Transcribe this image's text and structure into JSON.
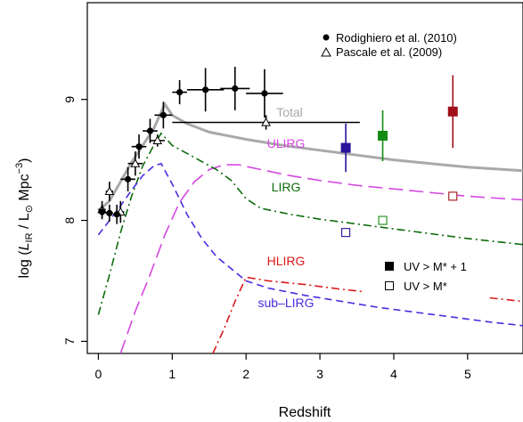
{
  "chart_data": {
    "type": "line",
    "xlabel": "Redshift",
    "ylabel_parts": [
      "log (",
      "L",
      "IR",
      " / L",
      "⊙",
      " Mpc",
      "−3",
      ")"
    ],
    "xlim": [
      -0.15,
      5.75
    ],
    "ylim": [
      6.9,
      9.8
    ],
    "x_ticks": [
      0,
      1,
      2,
      3,
      4,
      5
    ],
    "y_ticks": [
      7,
      8,
      9
    ],
    "colors": {
      "total": "#a9a9a9",
      "ulirg": "#d548e0",
      "lirg": "#0b6b0b",
      "hlirg": "#dd1818",
      "sublirg": "#4a2ce0",
      "uv_blue": "#2a129a",
      "uv_green": "#148a14",
      "uv_red": "#a0101a"
    },
    "curves": [
      {
        "key": "total",
        "label": "Total",
        "style": "solid",
        "points": [
          [
            0.0,
            8.08
          ],
          [
            0.15,
            8.16
          ],
          [
            0.3,
            8.32
          ],
          [
            0.45,
            8.48
          ],
          [
            0.6,
            8.62
          ],
          [
            0.75,
            8.76
          ],
          [
            0.9,
            8.96
          ],
          [
            1.0,
            8.87
          ],
          [
            1.2,
            8.8
          ],
          [
            1.5,
            8.73
          ],
          [
            2.0,
            8.67
          ],
          [
            2.5,
            8.62
          ],
          [
            3.0,
            8.58
          ],
          [
            3.5,
            8.54
          ],
          [
            4.0,
            8.5
          ],
          [
            4.5,
            8.47
          ],
          [
            5.0,
            8.44
          ],
          [
            5.75,
            8.41
          ]
        ]
      },
      {
        "key": "ulirg",
        "label": "ULIRG",
        "style": "longdash",
        "points": [
          [
            0.3,
            6.9
          ],
          [
            0.5,
            7.25
          ],
          [
            0.7,
            7.55
          ],
          [
            0.9,
            7.88
          ],
          [
            1.1,
            8.15
          ],
          [
            1.3,
            8.32
          ],
          [
            1.5,
            8.42
          ],
          [
            1.7,
            8.46
          ],
          [
            1.9,
            8.46
          ],
          [
            2.2,
            8.42
          ],
          [
            2.6,
            8.37
          ],
          [
            3.0,
            8.33
          ],
          [
            3.5,
            8.29
          ],
          [
            4.0,
            8.26
          ],
          [
            4.5,
            8.23
          ],
          [
            5.0,
            8.2
          ],
          [
            5.75,
            8.17
          ]
        ]
      },
      {
        "key": "lirg",
        "label": "LIRG",
        "style": "dashdot",
        "points": [
          [
            0.0,
            7.22
          ],
          [
            0.15,
            7.55
          ],
          [
            0.3,
            7.9
          ],
          [
            0.45,
            8.2
          ],
          [
            0.6,
            8.45
          ],
          [
            0.75,
            8.62
          ],
          [
            0.85,
            8.72
          ],
          [
            1.0,
            8.62
          ],
          [
            1.3,
            8.52
          ],
          [
            1.6,
            8.42
          ],
          [
            1.8,
            8.33
          ],
          [
            2.0,
            8.18
          ],
          [
            2.2,
            8.1
          ],
          [
            2.6,
            8.05
          ],
          [
            3.0,
            8.01
          ],
          [
            3.5,
            7.97
          ],
          [
            4.0,
            7.93
          ],
          [
            4.5,
            7.89
          ],
          [
            5.0,
            7.85
          ],
          [
            5.75,
            7.8
          ]
        ]
      },
      {
        "key": "hlirg",
        "label": "HLIRG",
        "style": "dashdot",
        "break_after_x": 3.6,
        "points": [
          [
            1.55,
            6.9
          ],
          [
            1.7,
            7.1
          ],
          [
            1.85,
            7.33
          ],
          [
            2.0,
            7.53
          ],
          [
            2.3,
            7.5
          ],
          [
            2.8,
            7.47
          ],
          [
            3.3,
            7.43
          ],
          [
            3.6,
            7.41
          ],
          [
            5.3,
            7.36
          ],
          [
            5.75,
            7.33
          ]
        ]
      },
      {
        "key": "sublirg",
        "label": "sub–LIRG",
        "style": "dash",
        "points": [
          [
            0.0,
            7.88
          ],
          [
            0.15,
            8.0
          ],
          [
            0.3,
            8.12
          ],
          [
            0.45,
            8.25
          ],
          [
            0.6,
            8.37
          ],
          [
            0.75,
            8.45
          ],
          [
            0.85,
            8.47
          ],
          [
            1.0,
            8.3
          ],
          [
            1.2,
            8.05
          ],
          [
            1.4,
            7.85
          ],
          [
            1.6,
            7.7
          ],
          [
            1.8,
            7.6
          ],
          [
            2.0,
            7.5
          ],
          [
            2.3,
            7.44
          ],
          [
            2.8,
            7.38
          ],
          [
            3.3,
            7.33
          ],
          [
            3.8,
            7.28
          ],
          [
            4.3,
            7.24
          ],
          [
            4.8,
            7.2
          ],
          [
            5.3,
            7.16
          ],
          [
            5.75,
            7.13
          ]
        ]
      }
    ],
    "rodighiero": {
      "label": "Rodighiero et al. (2010)",
      "points": [
        {
          "x": 0.05,
          "y": 8.07,
          "xerr": 0.05,
          "yerr": 0.06
        },
        {
          "x": 0.15,
          "y": 8.06,
          "xerr": 0.05,
          "yerr": 0.07
        },
        {
          "x": 0.25,
          "y": 8.05,
          "xerr": 0.05,
          "yerr": 0.08
        },
        {
          "x": 0.4,
          "y": 8.34,
          "xerr": 0.1,
          "yerr": 0.1
        },
        {
          "x": 0.55,
          "y": 8.61,
          "xerr": 0.1,
          "yerr": 0.1
        },
        {
          "x": 0.7,
          "y": 8.74,
          "xerr": 0.1,
          "yerr": 0.1
        },
        {
          "x": 0.88,
          "y": 8.87,
          "xerr": 0.12,
          "yerr": 0.11
        },
        {
          "x": 1.1,
          "y": 9.06,
          "xerr": 0.1,
          "yerr": 0.1
        },
        {
          "x": 1.45,
          "y": 9.08,
          "xerr": 0.25,
          "yerr": 0.18
        },
        {
          "x": 1.85,
          "y": 9.09,
          "xerr": 0.2,
          "yerr": 0.18
        },
        {
          "x": 2.25,
          "y": 9.05,
          "xerr": 0.25,
          "yerr": 0.2
        }
      ]
    },
    "pascale": {
      "label": "Pascale et al. (2009)",
      "points": [
        {
          "x": 0.05,
          "y": 8.09,
          "xerr": 0.05,
          "yerr": 0.07
        },
        {
          "x": 0.15,
          "y": 8.24,
          "xerr": 0.05,
          "yerr": 0.08
        },
        {
          "x": 0.3,
          "y": 8.07,
          "xerr": 0.05,
          "yerr": 0.09
        },
        {
          "x": 0.5,
          "y": 8.47,
          "xerr": 0.1,
          "yerr": 0.1
        },
        {
          "x": 0.8,
          "y": 8.66,
          "xerr": 0.1,
          "yerr": 0.05
        },
        {
          "x": 2.27,
          "y": 8.81,
          "xerr": 1.27,
          "yerr": 0.06
        }
      ]
    },
    "uv_bright": {
      "label": "UV > M* + 1",
      "points": [
        {
          "x": 3.35,
          "y": 8.6,
          "yerr": 0.2,
          "color_key": "uv_blue"
        },
        {
          "x": 3.85,
          "y": 8.7,
          "yerr": 0.21,
          "color_key": "uv_green"
        },
        {
          "x": 4.8,
          "y": 8.9,
          "yerr": 0.3,
          "color_key": "uv_red"
        }
      ]
    },
    "uv_faint": {
      "label": "UV > M*",
      "points": [
        {
          "x": 3.35,
          "y": 7.9,
          "color_key": "uv_blue"
        },
        {
          "x": 3.85,
          "y": 8.0,
          "color_key": "uv_green"
        },
        {
          "x": 4.8,
          "y": 8.2,
          "color_key": "uv_red"
        }
      ]
    },
    "legend_position": "top-right"
  }
}
